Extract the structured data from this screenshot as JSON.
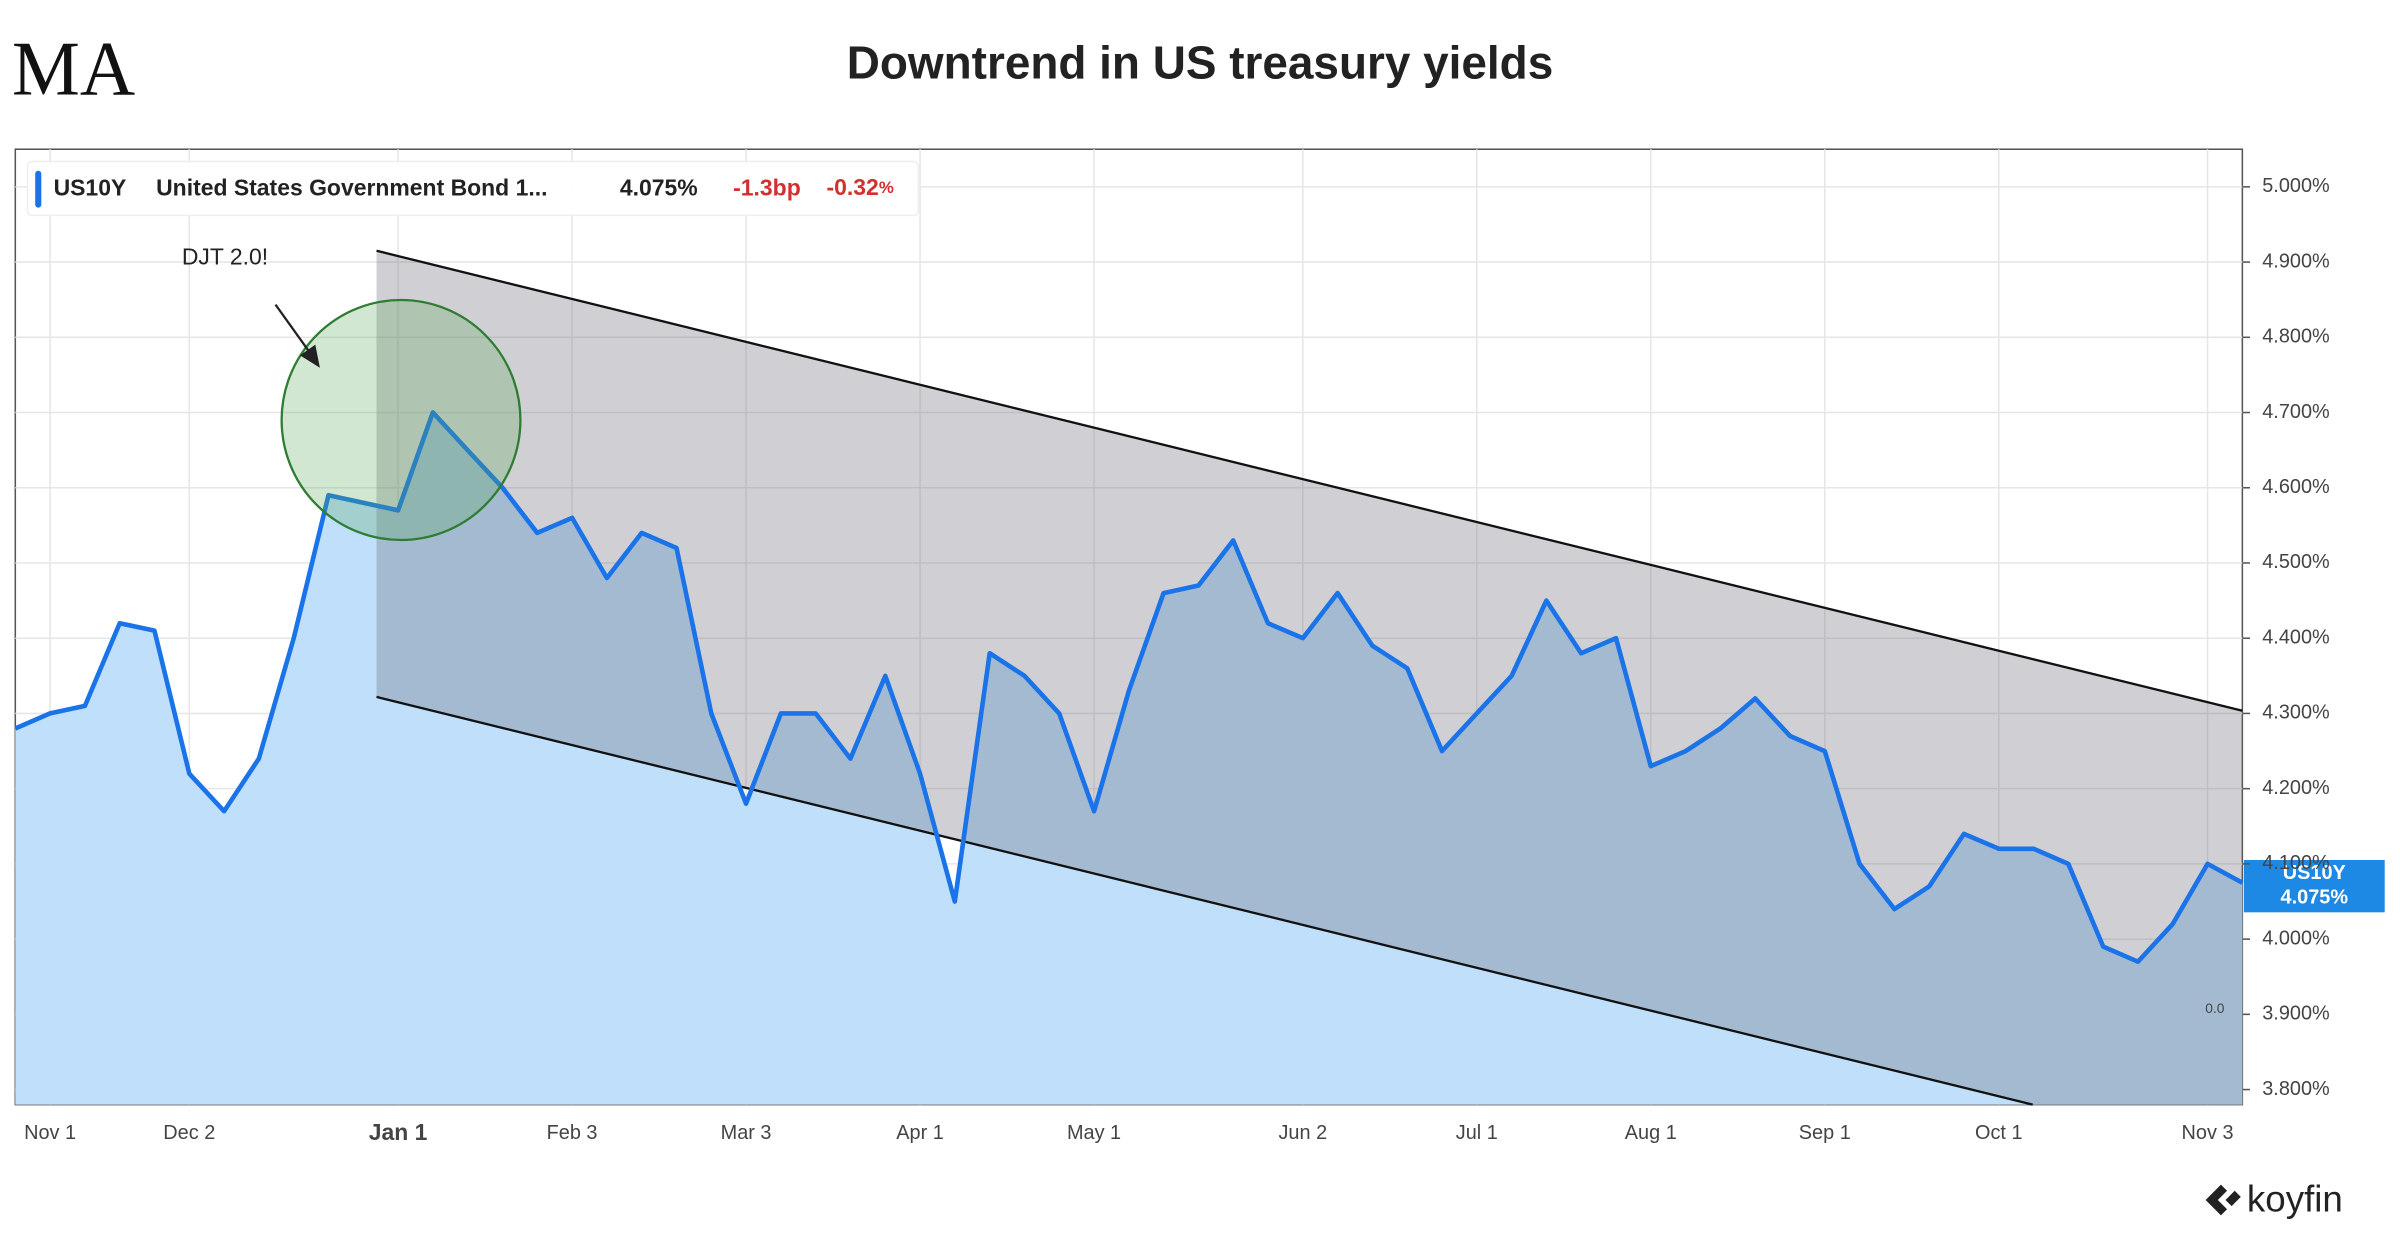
{
  "chart_data": {
    "type": "line",
    "title": "Downtrend in US treasury yields",
    "logo": "MA",
    "brand": "koyfin",
    "legend": {
      "ticker": "US10Y",
      "name": "United States Government Bond 1...",
      "last": "4.075%",
      "change": "-1.3bp",
      "change_pct": "-0.32",
      "pct_sign": "%"
    },
    "annotation": "DJT 2.0!",
    "price_tag": {
      "ticker": "US10Y",
      "value": "4.075%"
    },
    "pane_label": "0.0",
    "categories": [
      null,
      "Nov 1",
      null,
      null,
      null,
      "Dec 2",
      null,
      null,
      null,
      null,
      null,
      "Jan 1",
      null,
      null,
      null,
      null,
      "Feb 3",
      null,
      null,
      null,
      null,
      "Mar 3",
      null,
      null,
      null,
      null,
      "Apr 1",
      null,
      null,
      null,
      null,
      "May 1",
      null,
      null,
      null,
      null,
      null,
      "Jun 2",
      null,
      null,
      null,
      null,
      "Jul 1",
      null,
      null,
      null,
      null,
      "Aug 1",
      null,
      null,
      null,
      null,
      "Sep 1",
      null,
      null,
      null,
      null,
      "Oct 1",
      null,
      null,
      null,
      null,
      null,
      "Nov 3",
      null
    ],
    "series": [
      {
        "name": "US10Y",
        "color": "#1a73e8",
        "values": [
          4.28,
          4.3,
          4.31,
          4.42,
          4.41,
          4.22,
          4.17,
          4.24,
          4.4,
          4.59,
          4.58,
          4.57,
          4.7,
          4.65,
          4.6,
          4.54,
          4.56,
          4.48,
          4.54,
          4.52,
          4.3,
          4.18,
          4.3,
          4.3,
          4.24,
          4.35,
          4.22,
          4.05,
          4.38,
          4.35,
          4.3,
          4.17,
          4.33,
          4.46,
          4.47,
          4.53,
          4.42,
          4.4,
          4.46,
          4.39,
          4.36,
          4.25,
          4.3,
          4.35,
          4.45,
          4.38,
          4.4,
          4.23,
          4.25,
          4.28,
          4.32,
          4.27,
          4.25,
          4.1,
          4.04,
          4.07,
          4.14,
          4.12,
          4.12,
          4.1,
          3.99,
          3.97,
          4.02,
          4.1,
          4.075
        ]
      }
    ],
    "ylim": [
      3.78,
      5.05
    ],
    "yticks": [
      {
        "value": 3.8,
        "label": "3.800%"
      },
      {
        "value": 3.9,
        "label": "3.900%"
      },
      {
        "value": 4.0,
        "label": "4.000%"
      },
      {
        "value": 4.1,
        "label": "4.100%"
      },
      {
        "value": 4.2,
        "label": "4.200%"
      },
      {
        "value": 4.3,
        "label": "4.300%"
      },
      {
        "value": 4.4,
        "label": "4.400%"
      },
      {
        "value": 4.5,
        "label": "4.500%"
      },
      {
        "value": 4.6,
        "label": "4.600%"
      },
      {
        "value": 4.7,
        "label": "4.700%"
      },
      {
        "value": 4.8,
        "label": "4.800%"
      },
      {
        "value": 4.9,
        "label": "4.900%"
      },
      {
        "value": 5.0,
        "label": "5.000%"
      }
    ],
    "grid": true
  }
}
